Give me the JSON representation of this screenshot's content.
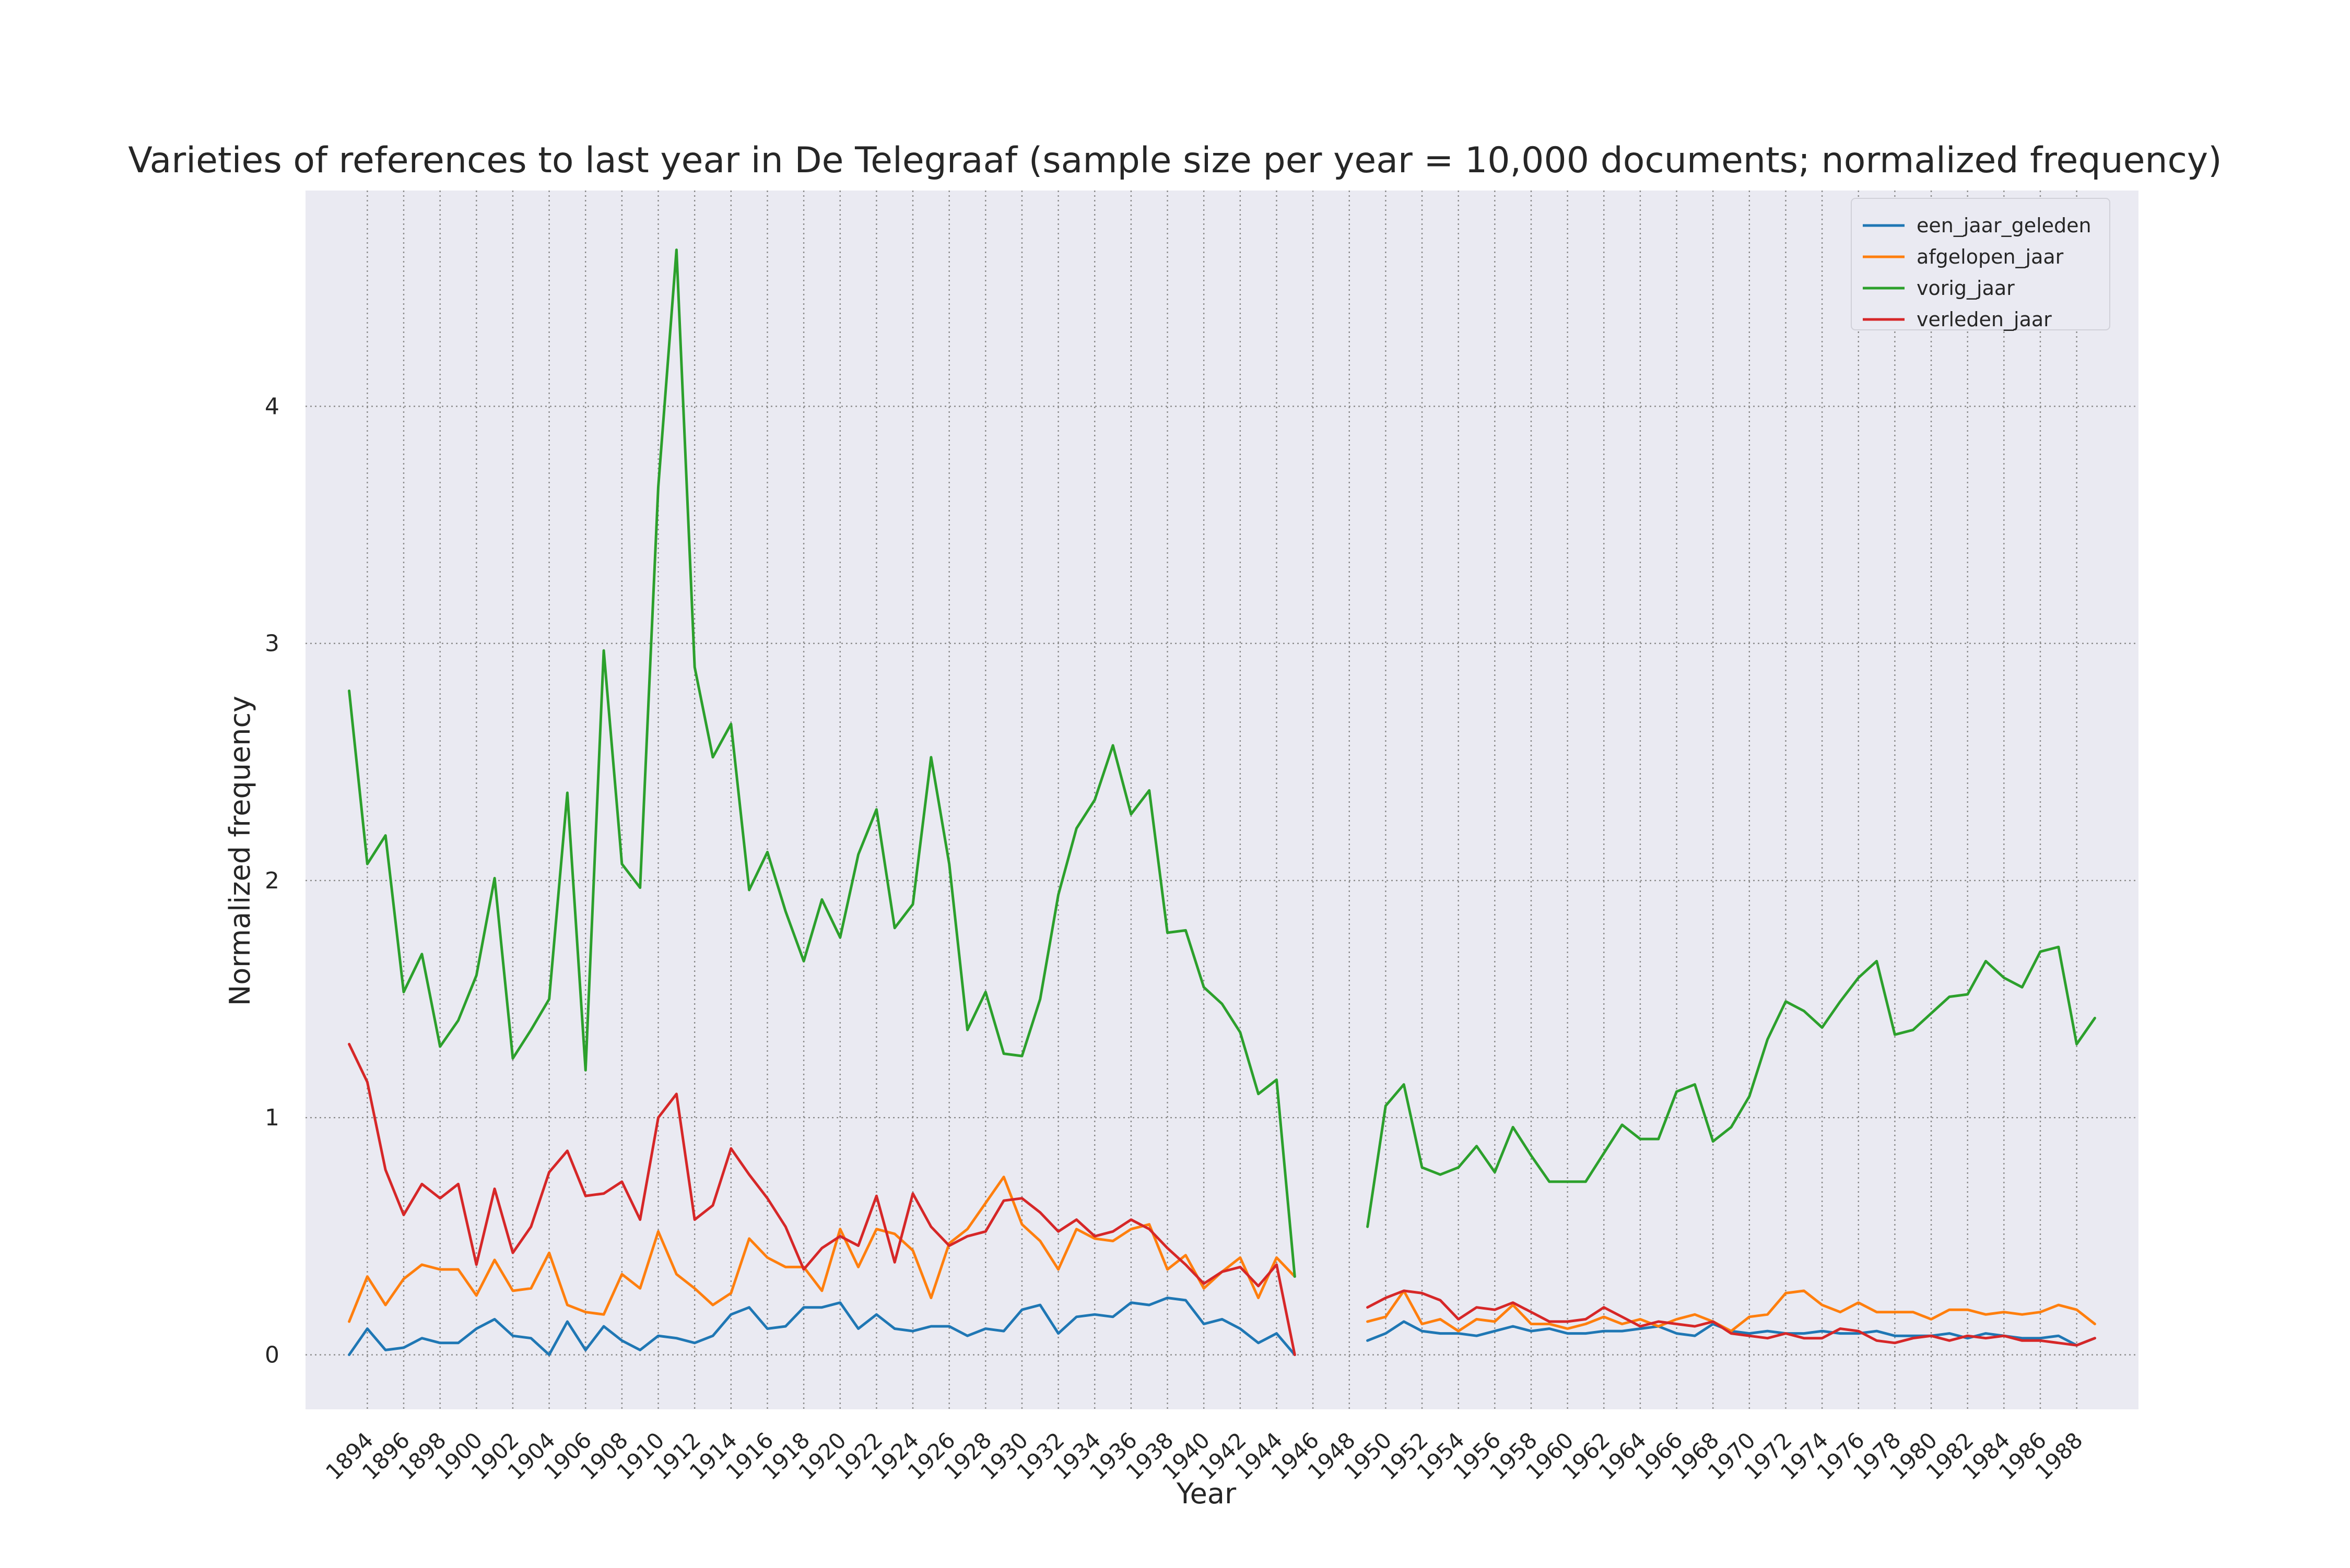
{
  "chart_data": {
    "type": "line",
    "title": "Varieties of references to last year in De Telegraaf (sample size per year = 10,000 documents; normalized frequency)",
    "xlabel": "Year",
    "ylabel": "Normalized frequency",
    "xlim": [
      1890.6,
      1991.4
    ],
    "ylim": [
      -0.23,
      4.91
    ],
    "yticks": [
      0,
      1,
      2,
      3,
      4
    ],
    "xticks": [
      1894,
      1896,
      1898,
      1900,
      1902,
      1904,
      1906,
      1908,
      1910,
      1912,
      1914,
      1916,
      1918,
      1920,
      1922,
      1924,
      1926,
      1928,
      1930,
      1932,
      1934,
      1936,
      1938,
      1940,
      1942,
      1944,
      1946,
      1948,
      1950,
      1952,
      1954,
      1956,
      1958,
      1960,
      1962,
      1964,
      1966,
      1968,
      1970,
      1972,
      1974,
      1976,
      1978,
      1980,
      1982,
      1984,
      1986,
      1988
    ],
    "grid": true,
    "legend_position": "upper right",
    "background": "#eaeaf2",
    "x": [
      1893,
      1894,
      1895,
      1896,
      1897,
      1898,
      1899,
      1900,
      1901,
      1902,
      1903,
      1904,
      1905,
      1906,
      1907,
      1908,
      1909,
      1910,
      1911,
      1912,
      1913,
      1914,
      1915,
      1916,
      1917,
      1918,
      1919,
      1920,
      1921,
      1922,
      1923,
      1924,
      1925,
      1926,
      1927,
      1928,
      1929,
      1930,
      1931,
      1932,
      1933,
      1934,
      1935,
      1936,
      1937,
      1938,
      1939,
      1940,
      1941,
      1942,
      1943,
      1944,
      1945,
      1946,
      1947,
      1948,
      1949,
      1950,
      1951,
      1952,
      1953,
      1954,
      1955,
      1956,
      1957,
      1958,
      1959,
      1960,
      1961,
      1962,
      1963,
      1964,
      1965,
      1966,
      1967,
      1968,
      1969,
      1970,
      1971,
      1972,
      1973,
      1974,
      1975,
      1976,
      1977,
      1978,
      1979,
      1980,
      1981,
      1982,
      1983,
      1984,
      1985,
      1986,
      1987,
      1988,
      1989
    ],
    "series": [
      {
        "name": "een_jaar_geleden",
        "color": "#1f77b4",
        "values": [
          0.0,
          0.11,
          0.02,
          0.03,
          0.07,
          0.05,
          0.05,
          0.11,
          0.15,
          0.08,
          0.07,
          0.0,
          0.14,
          0.02,
          0.12,
          0.06,
          0.02,
          0.08,
          0.07,
          0.05,
          0.08,
          0.17,
          0.2,
          0.11,
          0.12,
          0.2,
          0.2,
          0.22,
          0.11,
          0.17,
          0.11,
          0.1,
          0.12,
          0.12,
          0.08,
          0.11,
          0.1,
          0.19,
          0.21,
          0.09,
          0.16,
          0.17,
          0.16,
          0.22,
          0.21,
          0.24,
          0.23,
          0.13,
          0.15,
          0.11,
          0.05,
          0.09,
          0.0,
          null,
          null,
          null,
          0.06,
          0.09,
          0.14,
          0.1,
          0.09,
          0.09,
          0.08,
          0.1,
          0.12,
          0.1,
          0.11,
          0.09,
          0.09,
          0.1,
          0.1,
          0.11,
          0.12,
          0.09,
          0.08,
          0.13,
          0.1,
          0.09,
          0.1,
          0.09,
          0.09,
          0.1,
          0.09,
          0.09,
          0.1,
          0.08,
          0.08,
          0.08,
          0.09,
          0.07,
          0.09,
          0.08,
          0.07,
          0.07,
          0.08,
          0.04,
          0.07
        ]
      },
      {
        "name": "afgelopen_jaar",
        "color": "#ff7f0e",
        "values": [
          0.14,
          0.33,
          0.21,
          0.32,
          0.38,
          0.36,
          0.36,
          0.25,
          0.4,
          0.27,
          0.28,
          0.43,
          0.21,
          0.18,
          0.17,
          0.34,
          0.28,
          0.52,
          0.34,
          0.28,
          0.21,
          0.26,
          0.49,
          0.41,
          0.37,
          0.37,
          0.27,
          0.53,
          0.37,
          0.53,
          0.51,
          0.44,
          0.24,
          0.47,
          0.53,
          0.64,
          0.75,
          0.55,
          0.48,
          0.36,
          0.53,
          0.49,
          0.48,
          0.53,
          0.55,
          0.36,
          0.42,
          0.28,
          0.35,
          0.41,
          0.24,
          0.41,
          0.33,
          null,
          null,
          null,
          0.14,
          0.16,
          0.27,
          0.13,
          0.15,
          0.1,
          0.15,
          0.14,
          0.21,
          0.13,
          0.13,
          0.11,
          0.13,
          0.16,
          0.13,
          0.15,
          0.12,
          0.15,
          0.17,
          0.14,
          0.1,
          0.16,
          0.17,
          0.26,
          0.27,
          0.21,
          0.18,
          0.22,
          0.18,
          0.18,
          0.18,
          0.15,
          0.19,
          0.19,
          0.17,
          0.18,
          0.17,
          0.18,
          0.21,
          0.19,
          0.13
        ]
      },
      {
        "name": "vorig_jaar",
        "color": "#2ca02c",
        "values": [
          2.8,
          2.07,
          2.19,
          1.53,
          1.69,
          1.3,
          1.41,
          1.6,
          2.01,
          1.25,
          1.37,
          1.5,
          2.37,
          1.2,
          2.97,
          2.07,
          1.97,
          3.66,
          4.66,
          2.9,
          2.52,
          2.66,
          1.96,
          2.12,
          1.87,
          1.66,
          1.92,
          1.76,
          2.11,
          2.3,
          1.8,
          1.9,
          2.52,
          2.07,
          1.37,
          1.53,
          1.27,
          1.26,
          1.5,
          1.94,
          2.22,
          2.34,
          2.57,
          2.28,
          2.38,
          1.78,
          1.79,
          1.55,
          1.48,
          1.36,
          1.1,
          1.16,
          0.33,
          null,
          null,
          null,
          0.54,
          1.05,
          1.14,
          0.79,
          0.76,
          0.79,
          0.88,
          0.77,
          0.96,
          0.84,
          0.73,
          0.73,
          0.73,
          0.85,
          0.97,
          0.91,
          0.91,
          1.11,
          1.14,
          0.9,
          0.96,
          1.09,
          1.33,
          1.49,
          1.45,
          1.38,
          1.49,
          1.59,
          1.66,
          1.35,
          1.37,
          1.44,
          1.51,
          1.52,
          1.66,
          1.59,
          1.55,
          1.7,
          1.72,
          1.31,
          1.42
        ]
      },
      {
        "name": "verleden_jaar",
        "color": "#d62728",
        "values": [
          1.31,
          1.15,
          0.78,
          0.59,
          0.72,
          0.66,
          0.72,
          0.38,
          0.7,
          0.43,
          0.54,
          0.77,
          0.86,
          0.67,
          0.68,
          0.73,
          0.57,
          1.0,
          1.1,
          0.57,
          0.63,
          0.87,
          0.76,
          0.66,
          0.54,
          0.36,
          0.45,
          0.5,
          0.46,
          0.67,
          0.39,
          0.68,
          0.54,
          0.46,
          0.5,
          0.52,
          0.65,
          0.66,
          0.6,
          0.52,
          0.57,
          0.5,
          0.52,
          0.57,
          0.53,
          0.45,
          0.38,
          0.3,
          0.35,
          0.37,
          0.29,
          0.38,
          0.0,
          null,
          null,
          null,
          0.2,
          0.24,
          0.27,
          0.26,
          0.23,
          0.15,
          0.2,
          0.19,
          0.22,
          0.18,
          0.14,
          0.14,
          0.15,
          0.2,
          0.16,
          0.12,
          0.14,
          0.13,
          0.12,
          0.14,
          0.09,
          0.08,
          0.07,
          0.09,
          0.07,
          0.07,
          0.11,
          0.1,
          0.06,
          0.05,
          0.07,
          0.08,
          0.06,
          0.08,
          0.07,
          0.08,
          0.06,
          0.06,
          0.05,
          0.04,
          0.07
        ]
      }
    ]
  }
}
